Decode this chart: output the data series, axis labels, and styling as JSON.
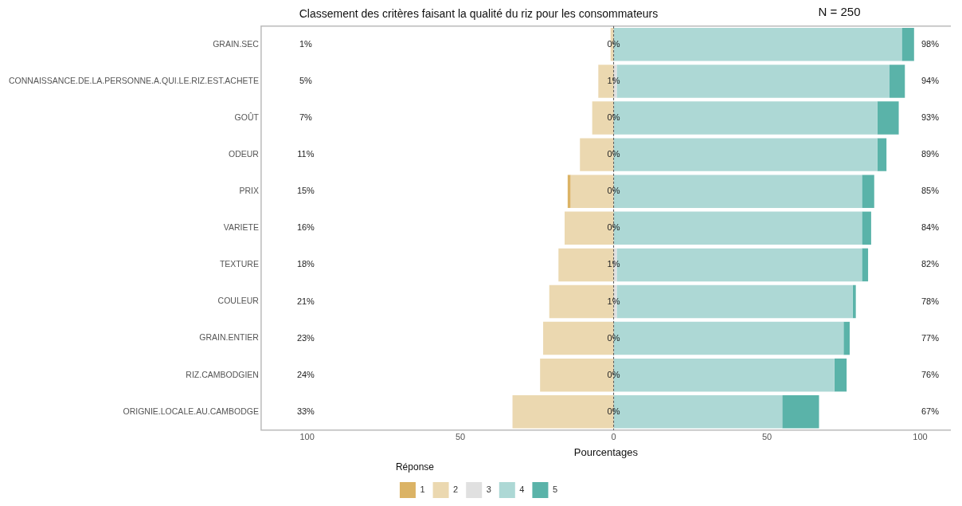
{
  "chart_data": {
    "type": "bar",
    "orientation": "horizontal",
    "stacked": true,
    "title": "Classement des critères faisant la qualité du riz pour les consommateurs",
    "xlabel": "Pourcentages",
    "legend_title": "Réponse",
    "legend": "bottom",
    "grid": false,
    "categories": [
      "GRAIN.SEC",
      "CONNAISSANCE.DE.LA.PERSONNE.A.QUI.LE.RIZ.EST.ACHETE",
      "GOÛT",
      "ODEUR",
      "PRIX",
      "VARIETE",
      "TEXTURE",
      "COULEUR",
      "GRAIN.ENTIER",
      "RIZ.CAMBODGIEN",
      "ORIGNIE.LOCALE.AU.CAMBODGE"
    ],
    "xlim": [
      -115,
      110
    ],
    "xticks": [
      {
        "value": -100,
        "label": "100"
      },
      {
        "value": -50,
        "label": "50"
      },
      0,
      50,
      100
    ],
    "series": [
      {
        "name": "1",
        "color": "#dbb365",
        "values": [
          0,
          0,
          0,
          0,
          -1,
          0,
          0,
          0,
          0,
          0,
          0
        ]
      },
      {
        "name": "2",
        "color": "#ebd8b0",
        "values": [
          -1,
          -5,
          -7,
          -11,
          -14,
          -16,
          -18,
          -21,
          -23,
          -24,
          -33
        ]
      },
      {
        "name": "3",
        "color": "#e0e0e0",
        "values": [
          0,
          1,
          0,
          0,
          0,
          0,
          1,
          1,
          0,
          0,
          0
        ]
      },
      {
        "name": "4",
        "color": "#add8d5",
        "values": [
          94,
          89,
          86,
          86,
          81,
          81,
          80,
          77,
          75,
          72,
          55
        ]
      },
      {
        "name": "5",
        "color": "#5ab3a9",
        "values": [
          4,
          5,
          7,
          3,
          4,
          3,
          2,
          1,
          2,
          4,
          12
        ]
      }
    ],
    "ref_lines": [
      {
        "axis": "x",
        "value": 0,
        "line_style": "dashed",
        "color": "#555555"
      }
    ],
    "annotations": [
      "N = 250",
      "1%",
      "5%",
      "7%",
      "11%",
      "15%",
      "16%",
      "18%",
      "21%",
      "23%",
      "24%",
      "33%",
      "0%",
      "1%",
      "0%",
      "0%",
      "0%",
      "0%",
      "1%",
      "1%",
      "0%",
      "0%",
      "0%",
      "98%",
      "94%",
      "93%",
      "89%",
      "85%",
      "84%",
      "82%",
      "78%",
      "77%",
      "76%",
      "67%"
    ]
  }
}
